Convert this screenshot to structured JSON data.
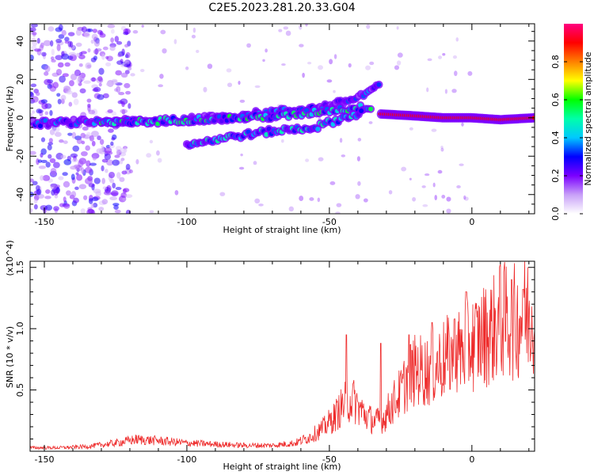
{
  "title": "C2E5.2023.281.20.33.G04",
  "chart_data": [
    {
      "type": "heatmap",
      "xlabel": "Height of straight line (km)",
      "ylabel": "Frequency (Hz)",
      "xlim": [
        -155,
        22
      ],
      "ylim": [
        -50,
        49
      ],
      "xticks": [
        -150,
        -100,
        -50,
        0
      ],
      "yticks": [
        40,
        20,
        0,
        -20,
        -40
      ],
      "colorbar": {
        "label": "Normalized spectral amplitude",
        "range": [
          0.0,
          1.0
        ],
        "ticks": [
          0.0,
          0.2,
          0.4,
          0.6,
          0.8
        ],
        "tick_labels": [
          "0.0",
          "0.2",
          "0.4",
          "0.6",
          "0.8"
        ],
        "colors": [
          "#ffffff",
          "#c8a0f8",
          "#7b00ff",
          "#0000ff",
          "#00c8ff",
          "#00ffaa",
          "#00ff00",
          "#ffff00",
          "#ff8000",
          "#ff0000",
          "#ff0080"
        ]
      },
      "ridges": [
        {
          "x": [
            -155,
            -130,
            -110,
            -90,
            -70,
            -55,
            -45,
            -38,
            -32
          ],
          "y": [
            -3,
            -2,
            -2,
            0,
            3,
            5,
            8,
            12,
            18
          ],
          "amplitude": 0.3
        },
        {
          "x": [
            -130,
            -115,
            -100,
            -80,
            -65,
            -50,
            -40,
            -35
          ],
          "y": [
            -3,
            -2,
            -1,
            0,
            1,
            4,
            5,
            6
          ],
          "amplitude": 0.45
        },
        {
          "x": [
            -100,
            -85,
            -70,
            -55,
            -45,
            -38
          ],
          "y": [
            -14,
            -10,
            -7,
            -5,
            0,
            3
          ],
          "amplitude": 0.4
        },
        {
          "x": [
            -32,
            -20,
            -10,
            0,
            10,
            22
          ],
          "y": [
            2,
            1,
            0,
            0,
            -1,
            0
          ],
          "amplitude": 0.9
        }
      ]
    },
    {
      "type": "line",
      "xlabel": "Height of straight line (km)",
      "ylabel": "SNR (10 * v/v)",
      "ylabel_multiplier": "(x10^4)",
      "xlim": [
        -155,
        22
      ],
      "ylim": [
        0,
        1.55
      ],
      "xticks": [
        -150,
        -100,
        -50,
        0
      ],
      "yticks": [
        0.5,
        1.0,
        1.5
      ],
      "ytick_labels": [
        "0.5",
        "1.0",
        "1.5"
      ],
      "series": [
        {
          "color": "#ee2a2a",
          "x": [
            -155,
            -145,
            -135,
            -125,
            -118,
            -110,
            -100,
            -90,
            -80,
            -70,
            -62,
            -57,
            -52,
            -48,
            -45,
            -42,
            -40,
            -37,
            -34,
            -31,
            -28,
            -25,
            -22,
            -19,
            -16,
            -13,
            -10,
            -7,
            -4,
            -1,
            2,
            5,
            8,
            10,
            12,
            15,
            18,
            22
          ],
          "y": [
            0.03,
            0.03,
            0.04,
            0.07,
            0.1,
            0.09,
            0.07,
            0.06,
            0.05,
            0.05,
            0.07,
            0.12,
            0.2,
            0.3,
            0.4,
            0.45,
            0.38,
            0.3,
            0.25,
            0.28,
            0.4,
            0.5,
            0.65,
            0.7,
            0.68,
            0.72,
            0.78,
            0.82,
            0.85,
            0.9,
            0.95,
            1.0,
            1.05,
            1.1,
            1.12,
            1.1,
            1.15,
            1.2
          ],
          "peaks_x": [
            -44,
            -32,
            -22,
            -14,
            -6,
            -2,
            10,
            14,
            18
          ],
          "peaks_y": [
            0.95,
            0.88,
            0.95,
            1.05,
            1.08,
            1.3,
            1.52,
            1.4,
            1.32
          ]
        }
      ]
    }
  ]
}
